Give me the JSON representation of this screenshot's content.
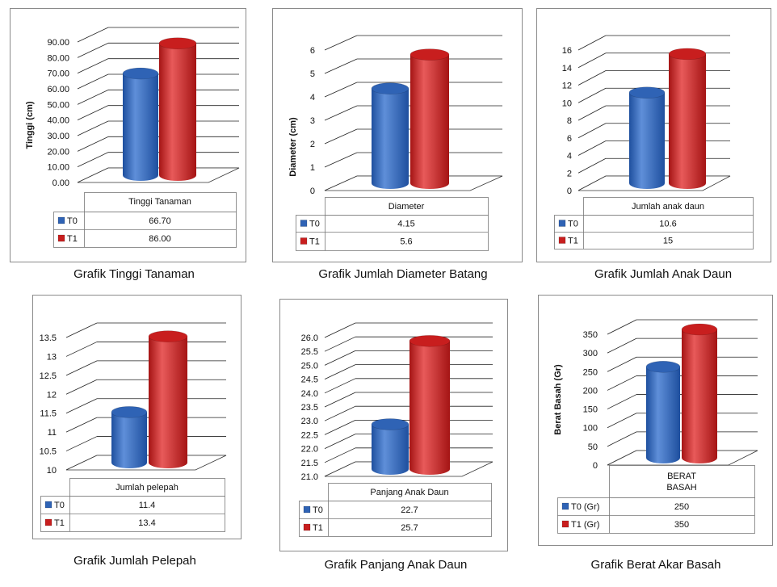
{
  "colors": {
    "T0": "#2f63b5",
    "T1": "#c81e1e",
    "grid": "#222222",
    "box_border": "#8a8a8a"
  },
  "icons": {
    "legend_marker": "legend-square-icon"
  },
  "chart_data": [
    {
      "type": "bar",
      "caption": "Grafik Tinggi Tanaman",
      "ylabel": "Tinggi (cm)",
      "categories": [
        "Tinggi Tanaman"
      ],
      "ylim": [
        0,
        90
      ],
      "yticks": [
        "0.00",
        "10.00",
        "20.00",
        "30.00",
        "40.00",
        "50.00",
        "60.00",
        "70.00",
        "80.00",
        "90.00"
      ],
      "series": [
        {
          "name": "T0",
          "values": [
            66.7
          ],
          "display": [
            "66.70"
          ]
        },
        {
          "name": "T1",
          "values": [
            86.0
          ],
          "display": [
            "86.00"
          ]
        }
      ],
      "grid": true,
      "legend": "table-bottom"
    },
    {
      "type": "bar",
      "caption": "Grafik Jumlah Diameter Batang",
      "ylabel": "Diameter (cm)",
      "categories": [
        "Diameter"
      ],
      "ylim": [
        0,
        6
      ],
      "yticks": [
        "0",
        "1",
        "2",
        "3",
        "4",
        "5",
        "6"
      ],
      "series": [
        {
          "name": "T0",
          "values": [
            4.15
          ],
          "display": [
            "4.15"
          ]
        },
        {
          "name": "T1",
          "values": [
            5.6
          ],
          "display": [
            "5.6"
          ]
        }
      ],
      "grid": true,
      "legend": "table-bottom"
    },
    {
      "type": "bar",
      "caption": "Grafik Jumlah Anak Daun",
      "ylabel": "",
      "categories": [
        "Jumlah anak daun"
      ],
      "ylim": [
        0,
        16
      ],
      "yticks": [
        "0",
        "2",
        "4",
        "6",
        "8",
        "10",
        "12",
        "14",
        "16"
      ],
      "series": [
        {
          "name": "T0",
          "values": [
            10.6
          ],
          "display": [
            "10.6"
          ]
        },
        {
          "name": "T1",
          "values": [
            15
          ],
          "display": [
            "15"
          ]
        }
      ],
      "grid": true,
      "legend": "table-bottom"
    },
    {
      "type": "bar",
      "caption": "Grafik Jumlah Pelepah",
      "ylabel": "",
      "categories": [
        "Jumlah pelepah"
      ],
      "ylim": [
        10,
        13.5
      ],
      "yticks": [
        "10",
        "10.5",
        "11",
        "11.5",
        "12",
        "12.5",
        "13",
        "13.5"
      ],
      "series": [
        {
          "name": "T0",
          "values": [
            11.4
          ],
          "display": [
            "11.4"
          ]
        },
        {
          "name": "T1",
          "values": [
            13.4
          ],
          "display": [
            "13.4"
          ]
        }
      ],
      "grid": true,
      "legend": "table-bottom"
    },
    {
      "type": "bar",
      "caption": "Grafik Panjang Anak Daun",
      "ylabel": "",
      "categories": [
        "Panjang Anak Daun"
      ],
      "ylim": [
        21,
        26
      ],
      "yticks": [
        "21.0",
        "21.5",
        "22.0",
        "22.5",
        "23.0",
        "23.5",
        "24.0",
        "24.5",
        "25.0",
        "25.5",
        "26.0"
      ],
      "series": [
        {
          "name": "T0",
          "values": [
            22.7
          ],
          "display": [
            "22.7"
          ]
        },
        {
          "name": "T1",
          "values": [
            25.7
          ],
          "display": [
            "25.7"
          ]
        }
      ],
      "grid": true,
      "legend": "table-bottom"
    },
    {
      "type": "bar",
      "caption": "Grafik Berat Akar Basah",
      "ylabel": "Berat Basah (Gr)",
      "categories": [
        "BERAT BASAH"
      ],
      "ylim": [
        0,
        350
      ],
      "yticks": [
        "0",
        "50",
        "100",
        "150",
        "200",
        "250",
        "300",
        "350"
      ],
      "series": [
        {
          "name": "T0 (Gr)",
          "values": [
            250
          ],
          "display": [
            "250"
          ]
        },
        {
          "name": "T1 (Gr)",
          "values": [
            350
          ],
          "display": [
            "350"
          ]
        }
      ],
      "grid": true,
      "legend": "table-bottom"
    }
  ]
}
